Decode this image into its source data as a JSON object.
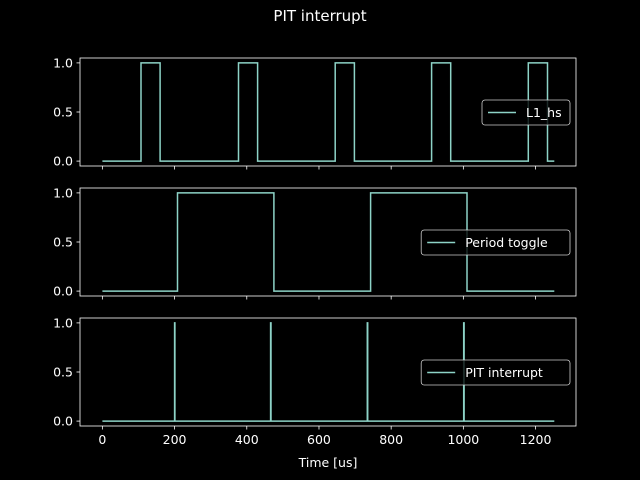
{
  "figure": {
    "title": "PIT interrupt",
    "background": "#000000",
    "line_color": "#8dd3c7",
    "xlabel": "Time [us]"
  },
  "chart_data": [
    {
      "type": "line",
      "title": "",
      "legend": "L1_hs",
      "legend_position": "center right",
      "xlim": [
        -62,
        1312
      ],
      "ylim": [
        -0.05,
        1.05
      ],
      "yticks": [
        "0.0",
        "0.5",
        "1.0"
      ],
      "xticks": [
        0,
        200,
        400,
        600,
        800,
        1000,
        1200
      ],
      "x": [
        0,
        107,
        107,
        160,
        160,
        377,
        377,
        430,
        430,
        645,
        645,
        698,
        698,
        912,
        912,
        965,
        965,
        1180,
        1180,
        1233,
        1233,
        1252
      ],
      "y": [
        0,
        0,
        1,
        1,
        0,
        0,
        1,
        1,
        0,
        0,
        1,
        1,
        0,
        0,
        1,
        1,
        0,
        0,
        1,
        1,
        0,
        0
      ]
    },
    {
      "type": "line",
      "title": "",
      "legend": "Period toggle",
      "legend_position": "center right",
      "xlim": [
        -62,
        1312
      ],
      "ylim": [
        -0.05,
        1.05
      ],
      "yticks": [
        "0.0",
        "0.5",
        "1.0"
      ],
      "xticks": [
        0,
        200,
        400,
        600,
        800,
        1000,
        1200
      ],
      "x": [
        0,
        208,
        208,
        475,
        475,
        743,
        743,
        1010,
        1010,
        1252
      ],
      "y": [
        0,
        0,
        1,
        1,
        0,
        0,
        1,
        1,
        0,
        0
      ]
    },
    {
      "type": "line",
      "title": "",
      "legend": "PIT interrupt",
      "legend_position": "center right",
      "xlabel": "Time [us]",
      "xlim": [
        -62,
        1312
      ],
      "ylim": [
        -0.05,
        1.05
      ],
      "yticks": [
        "0.0",
        "0.5",
        "1.0"
      ],
      "xticks": [
        0,
        200,
        400,
        600,
        800,
        1000,
        1200
      ],
      "x": [
        0,
        200,
        200,
        201,
        201,
        466,
        466,
        467,
        467,
        734,
        734,
        735,
        735,
        1001,
        1001,
        1002,
        1002,
        1252
      ],
      "y": [
        0,
        0,
        1,
        1,
        0,
        0,
        1,
        1,
        0,
        0,
        1,
        1,
        0,
        0,
        1,
        1,
        0,
        0
      ]
    }
  ]
}
